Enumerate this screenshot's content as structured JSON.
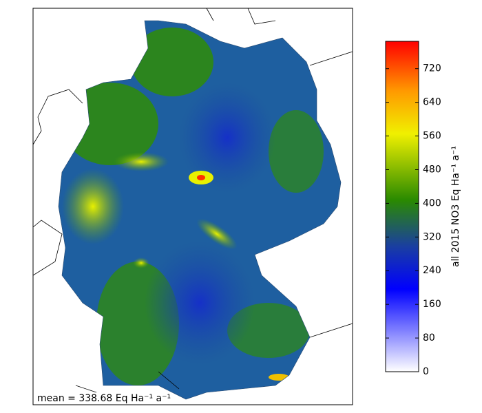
{
  "map": {
    "annotation": "mean = 338.68 Eq Ha⁻¹ a⁻¹",
    "colorbar": {
      "label": "all 2015 NO3 Eq Ha⁻¹ a⁻¹",
      "lim": [
        0,
        785
      ],
      "ticks": [
        0,
        80,
        160,
        240,
        320,
        400,
        480,
        560,
        640,
        720
      ]
    }
  }
}
